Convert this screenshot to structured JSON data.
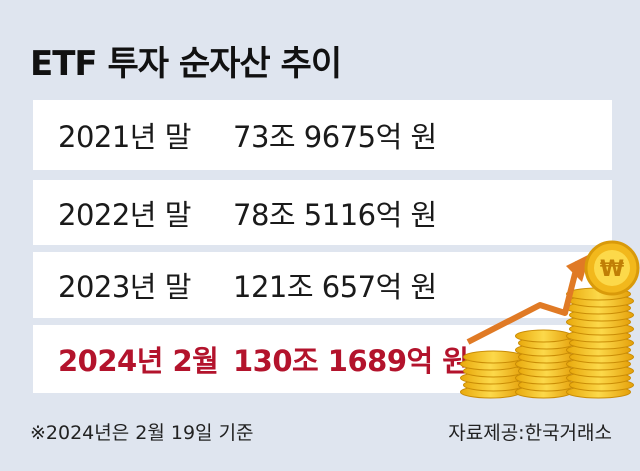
{
  "title": "ETF 투자 순자산 추이",
  "table": {
    "rows": [
      [
        "2021년 말",
        "73조 9675억 원"
      ],
      [
        "2022년 말",
        "78조 5116억 원"
      ],
      [
        "2023년 말",
        "121조 657억 원"
      ],
      [
        "2024년 2월",
        "130조 1689억 원"
      ]
    ]
  },
  "footnote": "※2024년은 2월 19일 기준",
  "source": "자료제공:한국거래소"
}
